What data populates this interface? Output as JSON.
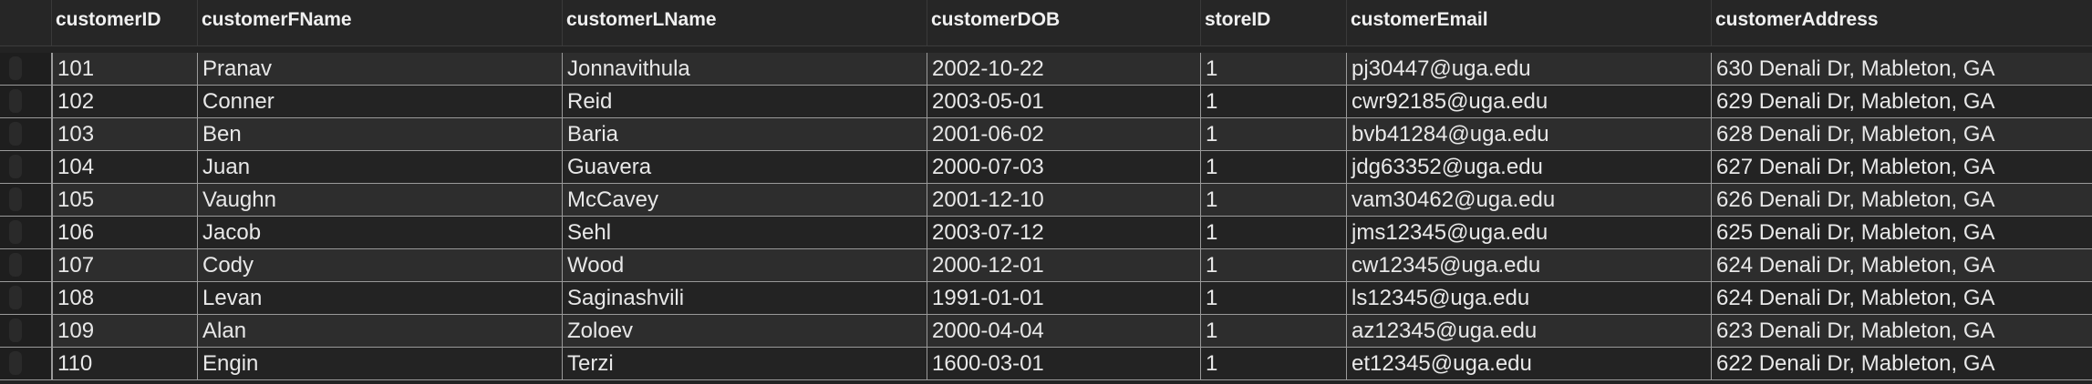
{
  "table": {
    "columns": [
      "customerID",
      "customerFName",
      "customerLName",
      "customerDOB",
      "storeID",
      "customerEmail",
      "customerAddress"
    ],
    "rows": [
      [
        "101",
        "Pranav",
        "Jonnavithula",
        "2002-10-22",
        "1",
        "pj30447@uga.edu",
        "630 Denali Dr, Mableton, GA"
      ],
      [
        "102",
        "Conner",
        "Reid",
        "2003-05-01",
        "1",
        "cwr92185@uga.edu",
        "629 Denali Dr, Mableton, GA"
      ],
      [
        "103",
        "Ben",
        "Baria",
        "2001-06-02",
        "1",
        "bvb41284@uga.edu",
        "628 Denali Dr, Mableton, GA"
      ],
      [
        "104",
        "Juan",
        "Guavera",
        "2000-07-03",
        "1",
        "jdg63352@uga.edu",
        "627 Denali Dr, Mableton, GA"
      ],
      [
        "105",
        "Vaughn",
        "McCavey",
        "2001-12-10",
        "1",
        "vam30462@uga.edu",
        "626 Denali Dr, Mableton, GA"
      ],
      [
        "106",
        "Jacob",
        "Sehl",
        "2003-07-12",
        "1",
        "jms12345@uga.edu",
        "625 Denali Dr, Mableton, GA"
      ],
      [
        "107",
        "Cody",
        "Wood",
        "2000-12-01",
        "1",
        "cw12345@uga.edu",
        "624 Denali Dr, Mableton, GA"
      ],
      [
        "108",
        "Levan",
        "Saginashvili",
        "1991-01-01",
        "1",
        "ls12345@uga.edu",
        "624 Denali Dr, Mableton, GA"
      ],
      [
        "109",
        "Alan",
        "Zoloev",
        "2000-04-04",
        "1",
        "az12345@uga.edu",
        "623 Denali Dr, Mableton, GA"
      ],
      [
        "110",
        "Engin",
        "Terzi",
        "1600-03-01",
        "1",
        "et12345@uga.edu",
        "622 Denali Dr, Mableton, GA"
      ]
    ]
  }
}
